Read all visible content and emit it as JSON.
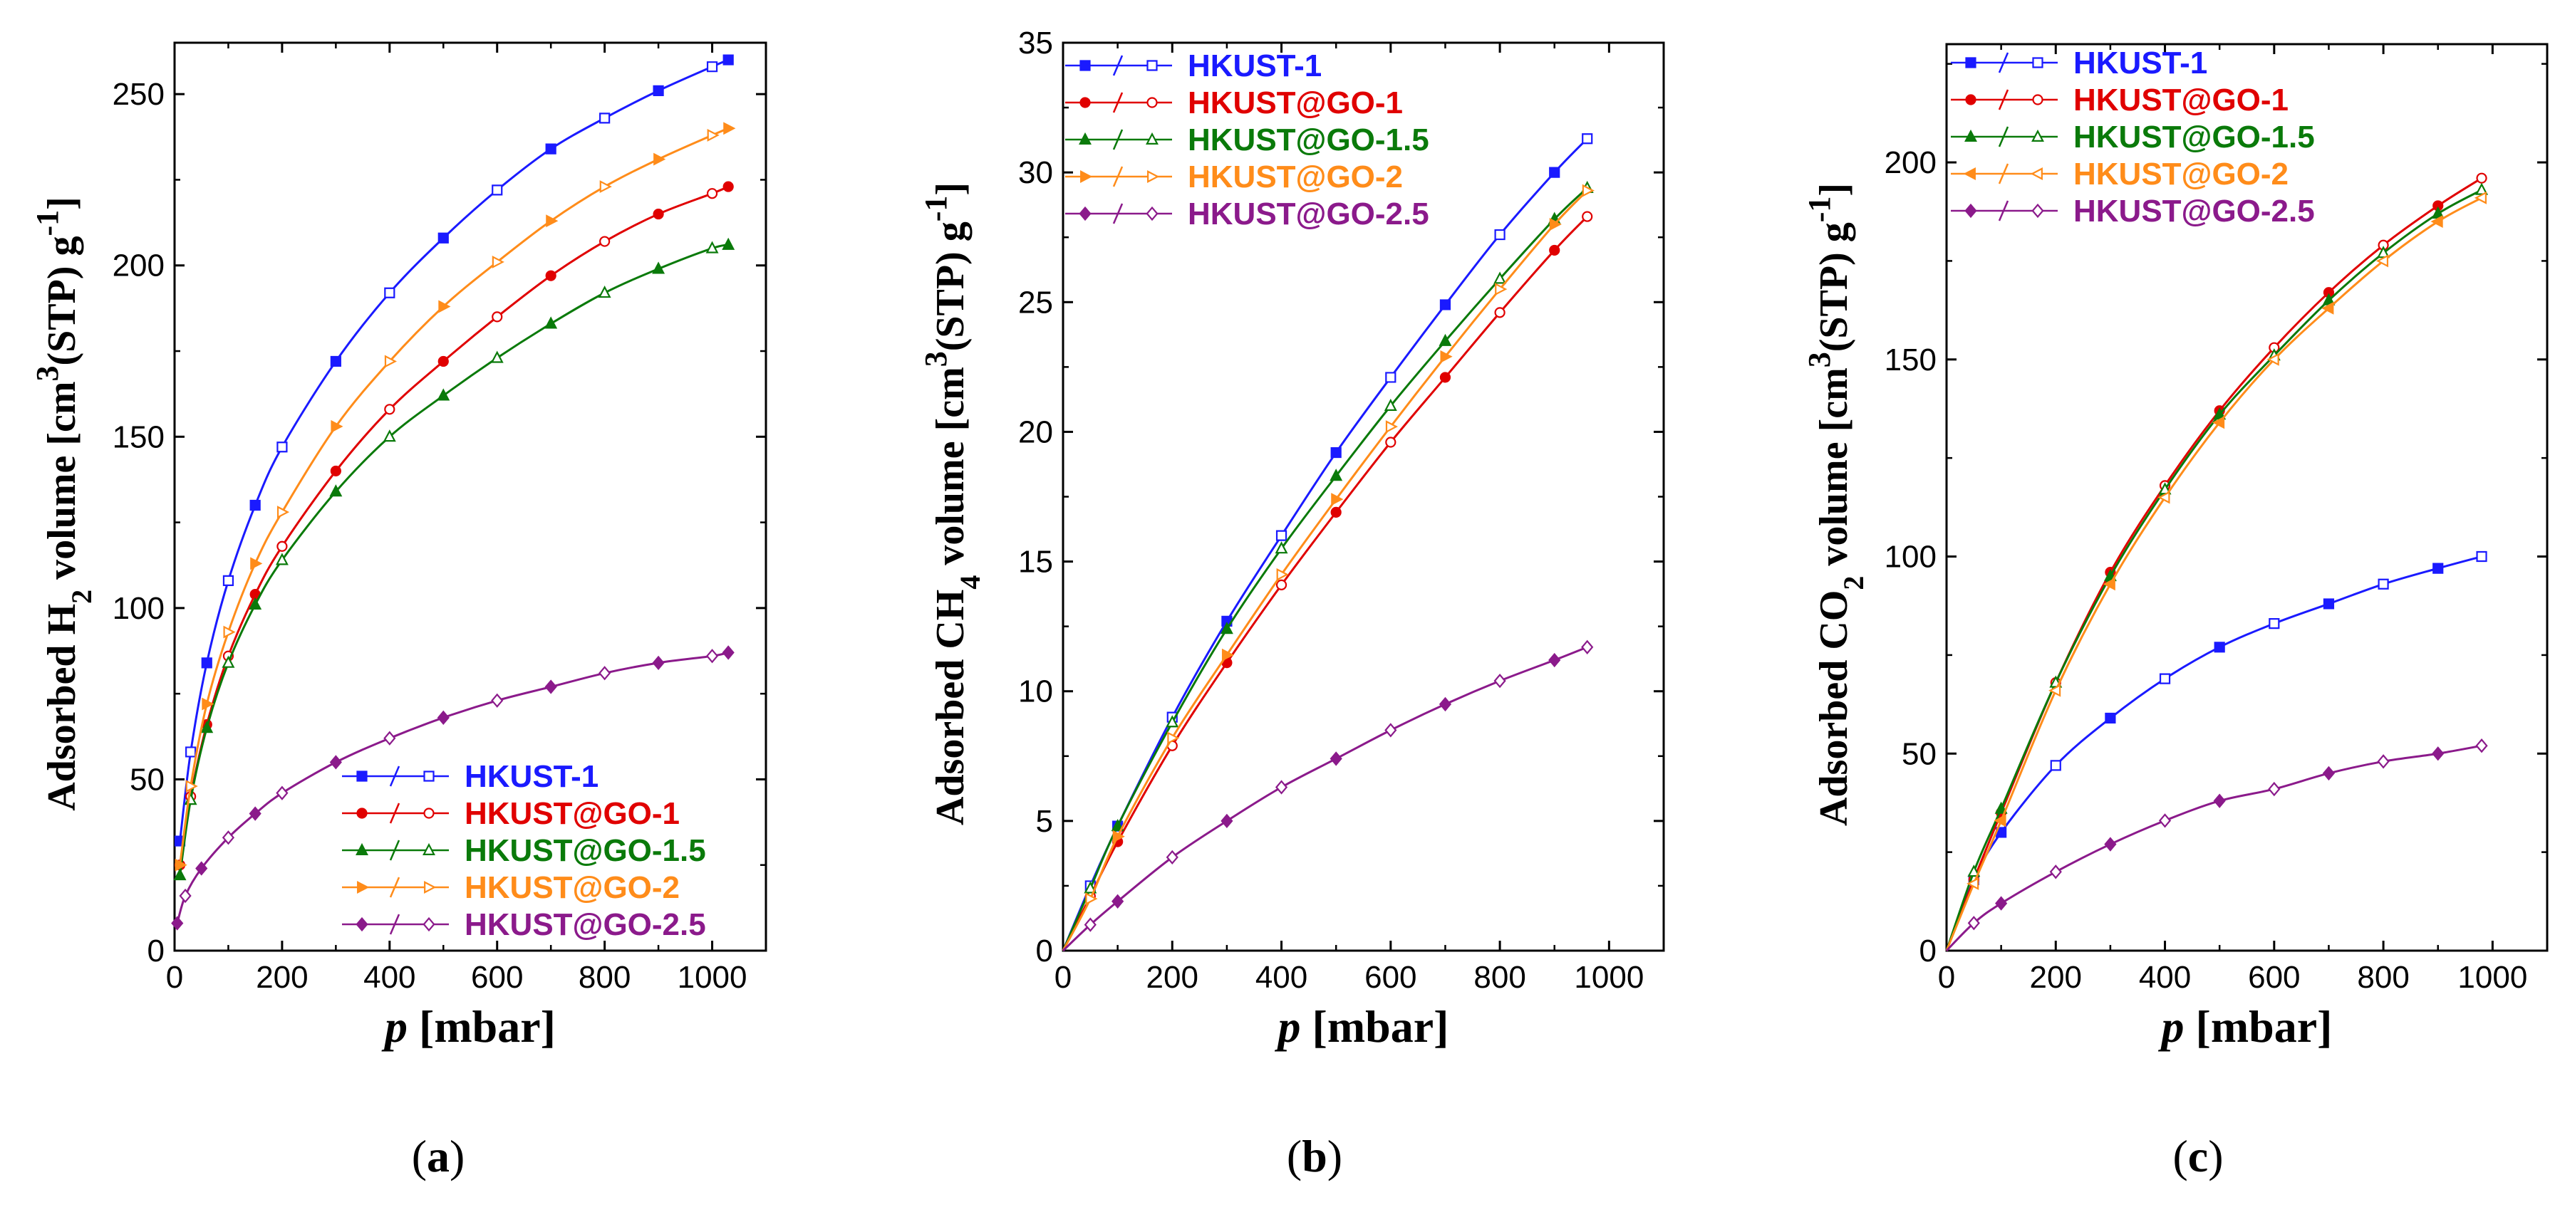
{
  "chart_data": [
    {
      "id": "a",
      "type": "line",
      "panel_label": "(a)",
      "panel_letter": "a",
      "xlabel_var": "p",
      "xlabel_unit": "[mbar]",
      "ylabel_pre": "Adsorbed H",
      "ylabel_sub": "2",
      "ylabel_mid": " volume [cm",
      "ylabel_sup": "3",
      "ylabel_post": "(STP) g",
      "ylabel_sup2": "-1",
      "ylabel_end": "]",
      "xlim": [
        0,
        1100
      ],
      "ylim": [
        0,
        265
      ],
      "xticks": [
        0,
        200,
        400,
        600,
        800,
        1000
      ],
      "yticks": [
        0,
        50,
        100,
        150,
        200,
        250
      ],
      "legend_position": "bottom-right",
      "series": [
        {
          "name": "HKUST-1",
          "color": "#1a1aff",
          "marker": "square",
          "x": [
            10,
            30,
            60,
            100,
            150,
            200,
            300,
            400,
            500,
            600,
            700,
            800,
            900,
            1000,
            1030
          ],
          "y": [
            32,
            58,
            84,
            108,
            130,
            147,
            172,
            192,
            208,
            222,
            234,
            243,
            251,
            258,
            260
          ]
        },
        {
          "name": "HKUST@GO-1",
          "color": "#e00000",
          "marker": "circle",
          "x": [
            10,
            30,
            60,
            100,
            150,
            200,
            300,
            400,
            500,
            600,
            700,
            800,
            900,
            1000,
            1030
          ],
          "y": [
            25,
            45,
            66,
            86,
            104,
            118,
            140,
            158,
            172,
            185,
            197,
            207,
            215,
            221,
            223
          ]
        },
        {
          "name": "HKUST@GO-1.5",
          "color": "#0a7a0a",
          "marker": "triangle",
          "x": [
            10,
            30,
            60,
            100,
            150,
            200,
            300,
            400,
            500,
            600,
            700,
            800,
            900,
            1000,
            1030
          ],
          "y": [
            22,
            44,
            65,
            84,
            101,
            114,
            134,
            150,
            162,
            173,
            183,
            192,
            199,
            205,
            206
          ]
        },
        {
          "name": "HKUST@GO-2",
          "color": "#ff8c1a",
          "marker": "triangle-right",
          "x": [
            10,
            30,
            60,
            100,
            150,
            200,
            300,
            400,
            500,
            600,
            700,
            800,
            900,
            1000,
            1030
          ],
          "y": [
            25,
            48,
            72,
            93,
            113,
            128,
            153,
            172,
            188,
            201,
            213,
            223,
            231,
            238,
            240
          ]
        },
        {
          "name": "HKUST@GO-2.5",
          "color": "#8b1a8b",
          "marker": "diamond",
          "x": [
            5,
            20,
            50,
            100,
            150,
            200,
            300,
            400,
            500,
            600,
            700,
            800,
            900,
            1000,
            1030
          ],
          "y": [
            8,
            16,
            24,
            33,
            40,
            46,
            55,
            62,
            68,
            73,
            77,
            81,
            84,
            86,
            87
          ]
        }
      ]
    },
    {
      "id": "b",
      "type": "line",
      "panel_label": "(b)",
      "panel_letter": "b",
      "xlabel_var": "p",
      "xlabel_unit": "[mbar]",
      "ylabel_pre": "Adsorbed CH",
      "ylabel_sub": "4",
      "ylabel_mid": " volume [cm",
      "ylabel_sup": "3",
      "ylabel_post": "(STP) g",
      "ylabel_sup2": "-1",
      "ylabel_end": "]",
      "xlim": [
        0,
        1100
      ],
      "ylim": [
        0,
        35
      ],
      "xticks": [
        0,
        200,
        400,
        600,
        800,
        1000
      ],
      "yticks": [
        0,
        5,
        10,
        15,
        20,
        25,
        30,
        35
      ],
      "legend_position": "top-left",
      "series": [
        {
          "name": "HKUST-1",
          "color": "#1a1aff",
          "marker": "square",
          "x": [
            0,
            50,
            100,
            200,
            300,
            400,
            500,
            600,
            700,
            800,
            900,
            960
          ],
          "y": [
            0,
            2.5,
            4.8,
            9.0,
            12.7,
            16.0,
            19.2,
            22.1,
            24.9,
            27.6,
            30.0,
            31.3
          ]
        },
        {
          "name": "HKUST@GO-1",
          "color": "#e00000",
          "marker": "circle",
          "x": [
            0,
            50,
            100,
            200,
            300,
            400,
            500,
            600,
            700,
            800,
            900,
            960
          ],
          "y": [
            0,
            2.1,
            4.2,
            7.9,
            11.1,
            14.1,
            16.9,
            19.6,
            22.1,
            24.6,
            27.0,
            28.3
          ]
        },
        {
          "name": "HKUST@GO-1.5",
          "color": "#0a7a0a",
          "marker": "triangle",
          "x": [
            0,
            50,
            100,
            200,
            300,
            400,
            500,
            600,
            700,
            800,
            900,
            960
          ],
          "y": [
            0,
            2.4,
            4.8,
            8.8,
            12.4,
            15.5,
            18.3,
            21.0,
            23.5,
            25.9,
            28.2,
            29.4
          ]
        },
        {
          "name": "HKUST@GO-2",
          "color": "#ff8c1a",
          "marker": "triangle-right",
          "x": [
            0,
            50,
            100,
            200,
            300,
            400,
            500,
            600,
            700,
            800,
            900,
            960
          ],
          "y": [
            0,
            2.0,
            4.4,
            8.2,
            11.4,
            14.5,
            17.4,
            20.2,
            22.9,
            25.5,
            28.0,
            29.3
          ]
        },
        {
          "name": "HKUST@GO-2.5",
          "color": "#8b1a8b",
          "marker": "diamond",
          "x": [
            0,
            50,
            100,
            200,
            300,
            400,
            500,
            600,
            700,
            800,
            900,
            960
          ],
          "y": [
            0,
            1.0,
            1.9,
            3.6,
            5.0,
            6.3,
            7.4,
            8.5,
            9.5,
            10.4,
            11.2,
            11.7
          ]
        }
      ]
    },
    {
      "id": "c",
      "type": "line",
      "panel_label": "(c)",
      "panel_letter": "c",
      "xlabel_var": "p",
      "xlabel_unit": "[mbar]",
      "ylabel_pre": "Adsorbed CO",
      "ylabel_sub": "2",
      "ylabel_mid": " volume [cm",
      "ylabel_sup": "3",
      "ylabel_post": "(STP) g",
      "ylabel_sup2": "-1",
      "ylabel_end": "]",
      "xlim": [
        0,
        1100
      ],
      "ylim": [
        0,
        230
      ],
      "xticks": [
        0,
        200,
        400,
        600,
        800,
        1000
      ],
      "yticks": [
        0,
        50,
        100,
        150,
        200
      ],
      "legend_position": "top-left",
      "series": [
        {
          "name": "HKUST-1",
          "color": "#1a1aff",
          "marker": "square",
          "x": [
            0,
            50,
            100,
            200,
            300,
            400,
            500,
            600,
            700,
            800,
            900,
            980
          ],
          "y": [
            0,
            18,
            30,
            47,
            59,
            69,
            77,
            83,
            88,
            93,
            97,
            100
          ]
        },
        {
          "name": "HKUST@GO-1",
          "color": "#e00000",
          "marker": "circle",
          "x": [
            0,
            50,
            100,
            200,
            300,
            400,
            500,
            600,
            700,
            800,
            900,
            980
          ],
          "y": [
            0,
            18,
            35,
            68,
            96,
            118,
            137,
            153,
            167,
            179,
            189,
            196
          ]
        },
        {
          "name": "HKUST@GO-1.5",
          "color": "#0a7a0a",
          "marker": "triangle",
          "x": [
            0,
            50,
            100,
            200,
            300,
            400,
            500,
            600,
            700,
            800,
            900,
            980
          ],
          "y": [
            0,
            20,
            36,
            68,
            95,
            117,
            136,
            151,
            165,
            177,
            187,
            193
          ]
        },
        {
          "name": "HKUST@GO-2",
          "color": "#ff8c1a",
          "marker": "triangle-left",
          "x": [
            0,
            50,
            100,
            200,
            300,
            400,
            500,
            600,
            700,
            800,
            900,
            980
          ],
          "y": [
            0,
            17,
            33,
            66,
            93,
            115,
            134,
            150,
            163,
            175,
            185,
            191
          ]
        },
        {
          "name": "HKUST@GO-2.5",
          "color": "#8b1a8b",
          "marker": "diamond",
          "x": [
            0,
            50,
            100,
            200,
            300,
            400,
            500,
            600,
            700,
            800,
            900,
            980
          ],
          "y": [
            0,
            7,
            12,
            20,
            27,
            33,
            38,
            41,
            45,
            48,
            50,
            52
          ]
        }
      ]
    }
  ]
}
